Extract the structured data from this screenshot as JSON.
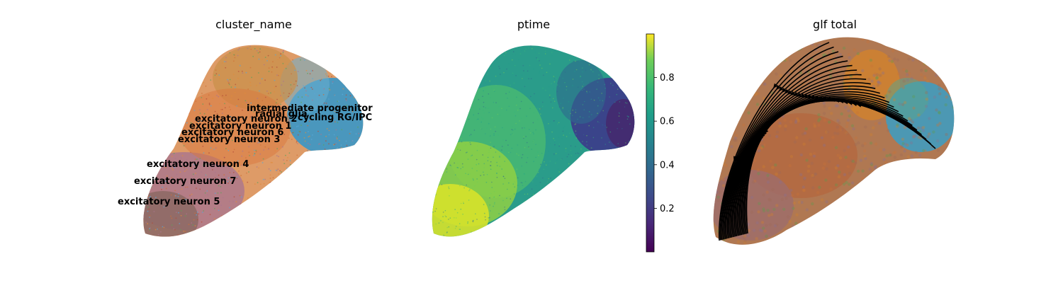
{
  "chart_data": [
    {
      "type": "scatter",
      "title": "cluster_name",
      "colors": {
        "intermediate progenitor": "#2f8fbf",
        "radial glia": "#5aa6d6",
        "cycling RG/IPC": "#3b9dc4",
        "excitatory neuron 2": "#e08b3c",
        "excitatory neuron 1": "#d9803a",
        "excitatory neuron 6": "#c97a4a",
        "excitatory neuron 3": "#cf6f38",
        "excitatory neuron 4": "#a9758f",
        "excitatory neuron 7": "#9c6d7a",
        "excitatory neuron 5": "#8f6a66",
        "other": "#5ea35a"
      },
      "labels": [
        "intermediate progenitor",
        "radial glia",
        "cycling RG/IPC",
        "excitatory neuron 2",
        "excitatory neuron 1",
        "excitatory neuron 6",
        "excitatory neuron 3",
        "excitatory neuron 4",
        "excitatory neuron 7",
        "excitatory neuron 5"
      ]
    },
    {
      "type": "scatter",
      "title": "ptime",
      "colorbar": {
        "ticks": [
          "0.2",
          "0.4",
          "0.6",
          "0.8"
        ],
        "range": [
          0,
          1
        ],
        "cmap": "viridis"
      }
    },
    {
      "type": "scatter",
      "title": "glf total",
      "overlay": "streamlines"
    }
  ]
}
